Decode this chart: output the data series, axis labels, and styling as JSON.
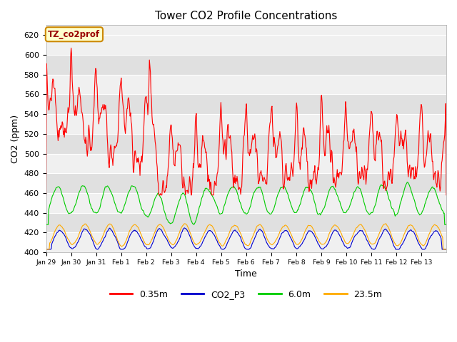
{
  "title": "Tower CO2 Profile Concentrations",
  "xlabel": "Time",
  "ylabel": "CO2 (ppm)",
  "ylim": [
    400,
    630
  ],
  "yticks": [
    400,
    420,
    440,
    460,
    480,
    500,
    520,
    540,
    560,
    580,
    600,
    620
  ],
  "label_box_text": "TZ_co2prof",
  "label_box_facecolor": "#ffffcc",
  "label_box_edgecolor": "#cc8800",
  "label_text_color": "#990000",
  "bg_color": "#ffffff",
  "plot_bg_light": "#f0f0f0",
  "plot_bg_dark": "#e0e0e0",
  "line_colors": {
    "0.35m": "#ff0000",
    "CO2_P3": "#0000cc",
    "6.0m": "#00cc00",
    "23.5m": "#ffaa00"
  },
  "line_width": 0.8,
  "n_points": 768,
  "x_tick_labels": [
    "Jan 29",
    "Jan 30",
    "Jan 31",
    "Feb 1",
    "Feb 2",
    "Feb 3",
    "Feb 4",
    "Feb 5",
    "Feb 6",
    "Feb 7",
    "Feb 8",
    "Feb 9",
    "Feb 10",
    "Feb 11",
    "Feb 12",
    "Feb 13"
  ],
  "figsize": [
    6.4,
    4.8
  ],
  "dpi": 100
}
